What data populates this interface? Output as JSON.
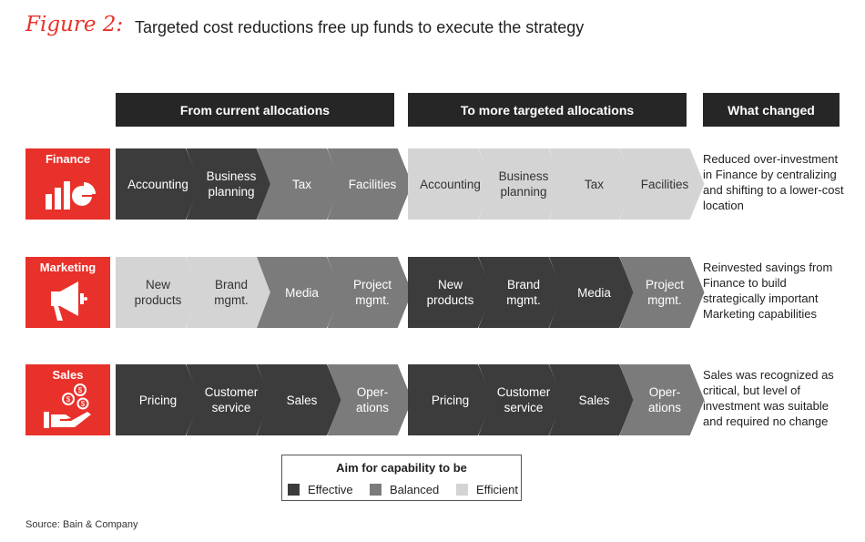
{
  "figure_label": "Figure 2:",
  "title": "Targeted cost reductions free up funds to execute the strategy",
  "headers": {
    "from": "From current allocations",
    "to": "To more targeted allocations",
    "what": "What changed"
  },
  "colors": {
    "effective": "#3c3c3c",
    "balanced": "#7b7b7b",
    "efficient": "#d4d4d4",
    "accent": "#e8312a"
  },
  "rows": [
    {
      "label": "Finance",
      "icon": "bar-pie-chart-icon",
      "from": [
        {
          "text": "Accounting",
          "level": "effective"
        },
        {
          "text": "Business\nplanning",
          "level": "effective"
        },
        {
          "text": "Tax",
          "level": "balanced"
        },
        {
          "text": "Facilities",
          "level": "balanced"
        }
      ],
      "to": [
        {
          "text": "Accounting",
          "level": "efficient"
        },
        {
          "text": "Business\nplanning",
          "level": "efficient"
        },
        {
          "text": "Tax",
          "level": "efficient"
        },
        {
          "text": "Facilities",
          "level": "efficient"
        }
      ],
      "change": "Reduced over-investment in Finance by centralizing and shifting to a lower-cost location"
    },
    {
      "label": "Marketing",
      "icon": "megaphone-icon",
      "from": [
        {
          "text": "New\nproducts",
          "level": "efficient"
        },
        {
          "text": "Brand\nmgmt.",
          "level": "efficient"
        },
        {
          "text": "Media",
          "level": "balanced"
        },
        {
          "text": "Project\nmgmt.",
          "level": "balanced"
        }
      ],
      "to": [
        {
          "text": "New\nproducts",
          "level": "effective"
        },
        {
          "text": "Brand\nmgmt.",
          "level": "effective"
        },
        {
          "text": "Media",
          "level": "effective"
        },
        {
          "text": "Project\nmgmt.",
          "level": "balanced"
        }
      ],
      "change": "Reinvested savings from Finance to build strategically important Marketing capabilities"
    },
    {
      "label": "Sales",
      "icon": "hand-coins-icon",
      "from": [
        {
          "text": "Pricing",
          "level": "effective"
        },
        {
          "text": "Customer\nservice",
          "level": "effective"
        },
        {
          "text": "Sales",
          "level": "effective"
        },
        {
          "text": "Oper-\nations",
          "level": "balanced"
        }
      ],
      "to": [
        {
          "text": "Pricing",
          "level": "effective"
        },
        {
          "text": "Customer\nservice",
          "level": "effective"
        },
        {
          "text": "Sales",
          "level": "effective"
        },
        {
          "text": "Oper-\nations",
          "level": "balanced"
        }
      ],
      "change": "Sales was recognized as critical, but level of investment was suitable and required no change"
    }
  ],
  "legend": {
    "title": "Aim for capability to be",
    "items": [
      {
        "label": "Effective",
        "level": "effective"
      },
      {
        "label": "Balanced",
        "level": "balanced"
      },
      {
        "label": "Efficient",
        "level": "efficient"
      }
    ]
  },
  "source": "Source: Bain & Company"
}
